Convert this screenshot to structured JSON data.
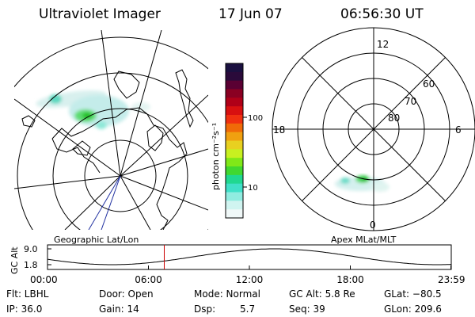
{
  "header": {
    "instrument": "Ultraviolet Imager",
    "date": "17 Jun 07",
    "time": "06:56:30 UT"
  },
  "colorbar": {
    "label": "photon cm⁻²s⁻¹",
    "ticks": [
      "100",
      "10"
    ],
    "colors": [
      "#1a1040",
      "#2a0a3a",
      "#5a0033",
      "#8a0022",
      "#b00018",
      "#d81010",
      "#f03010",
      "#f06a08",
      "#f0a010",
      "#e8d020",
      "#c8f020",
      "#80e818",
      "#40d830",
      "#20d890",
      "#40e0c8",
      "#90ece0",
      "#d0f4f0",
      "#f0f8f8"
    ]
  },
  "geo_map": {
    "label": "Geographic Lat/Lon",
    "icon": "geographic-map-projection"
  },
  "polar_plot": {
    "label": "Apex MLat/MLT",
    "mlt_labels": {
      "top": "12",
      "right": "6",
      "left": "18",
      "bottom": "0"
    },
    "lat_labels": [
      "60",
      "70",
      "80"
    ]
  },
  "altitude_plot": {
    "ylabel": "GC Alt",
    "yticks": [
      "9.0",
      "1.8"
    ],
    "xticks": [
      "00:00",
      "06:00",
      "12:00",
      "18:00",
      "23:59"
    ],
    "current_time_marker_hours": 6.94,
    "marker_color": "#cc0000"
  },
  "status": {
    "filter": "Flt: LBHL",
    "door": "Door: Open",
    "mode": "Mode: Normal",
    "gc_alt": "GC Alt: 5.8 Re",
    "glat": "GLat: −80.5",
    "ip": "IP: 36.0",
    "gain": "Gain: 14",
    "dsp_label": "Dsp:",
    "dsp_value": "5.7",
    "seq": "Seq: 39",
    "glon": "GLon: 209.6"
  }
}
